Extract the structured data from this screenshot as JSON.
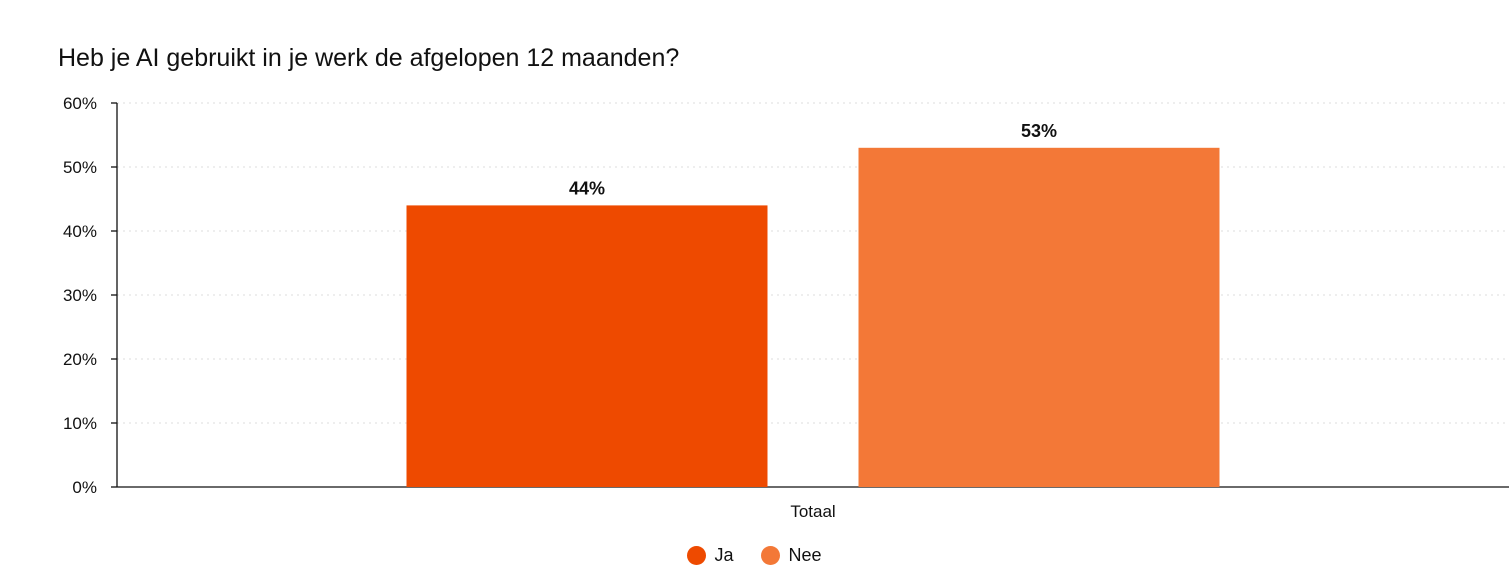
{
  "chart_data": {
    "type": "bar",
    "title": "Heb je AI gebruikt in je werk de afgelopen 12 maanden?",
    "categories": [
      "Totaal"
    ],
    "series": [
      {
        "name": "Ja",
        "values": [
          44
        ],
        "color": "#EE4A00",
        "label": "44%"
      },
      {
        "name": "Nee",
        "values": [
          53
        ],
        "color": "#F37837",
        "label": "53%"
      }
    ],
    "xlabel": "",
    "ylabel": "",
    "ylim": [
      0,
      60
    ],
    "yticks": [
      0,
      10,
      20,
      30,
      40,
      50,
      60
    ],
    "ytick_labels": [
      "0%",
      "10%",
      "20%",
      "30%",
      "40%",
      "50%",
      "60%"
    ],
    "grid": true,
    "legend_position": "bottom-center"
  }
}
